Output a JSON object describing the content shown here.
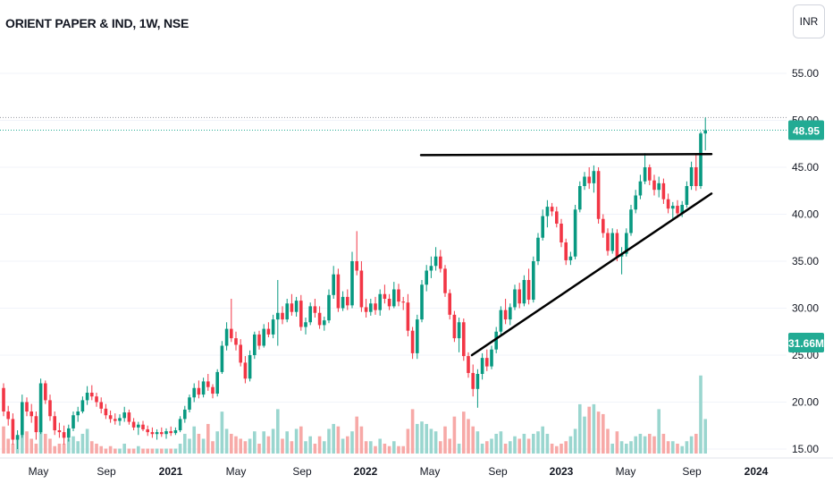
{
  "header": {
    "title": "ORIENT PAPER & IND, 1W, NSE"
  },
  "currency_button": {
    "label": "INR"
  },
  "colors": {
    "up": "#089981",
    "down": "#f23645",
    "volume_up": "#9ad6cf",
    "volume_down": "#f7a9a7",
    "last_price_line": "#22ab94",
    "trendline": "#000000",
    "axis_text": "#131722"
  },
  "chart_data": {
    "type": "candlestick",
    "ylim": [
      15,
      60
    ],
    "y_ticks": [
      "15.00",
      "20.00",
      "25.00",
      "30.00",
      "35.00",
      "40.00",
      "45.00",
      "50.00",
      "55.00"
    ],
    "x_ticks": [
      "May",
      "Sep",
      "2021",
      "May",
      "Sep",
      "2022",
      "May",
      "Sep",
      "2023",
      "May",
      "Sep",
      "2024"
    ],
    "last_price": "48.95",
    "volume_label": "31.66M",
    "high_line": 50.3,
    "resistance_line": {
      "start": 46.3,
      "end": 46.4
    },
    "support_line": {
      "start": 25.0,
      "end": 42.2
    },
    "volume_axis_max": 45,
    "candles": [
      [
        21.5,
        22.0,
        18.5,
        19.0
      ],
      [
        19.0,
        19.6,
        17.5,
        18.2
      ],
      [
        18.2,
        18.8,
        15.5,
        16.0
      ],
      [
        16.0,
        17.0,
        15.0,
        16.5
      ],
      [
        16.5,
        20.8,
        16.2,
        20.0
      ],
      [
        20.0,
        20.5,
        18.5,
        19.0
      ],
      [
        19.0,
        19.8,
        17.8,
        18.5
      ],
      [
        18.5,
        19.0,
        16.0,
        16.8
      ],
      [
        16.8,
        22.5,
        16.6,
        22.0
      ],
      [
        22.0,
        22.3,
        19.8,
        20.2
      ],
      [
        20.2,
        20.8,
        18.0,
        18.5
      ],
      [
        18.5,
        19.0,
        16.5,
        17.0
      ],
      [
        17.0,
        17.8,
        16.2,
        16.8
      ],
      [
        16.8,
        17.5,
        15.5,
        16.2
      ],
      [
        16.2,
        17.6,
        15.8,
        17.2
      ],
      [
        17.2,
        19.0,
        16.9,
        18.6
      ],
      [
        18.6,
        19.5,
        17.9,
        19.0
      ],
      [
        19.0,
        20.6,
        18.8,
        20.2
      ],
      [
        20.2,
        21.7,
        19.7,
        21.0
      ],
      [
        21.0,
        21.8,
        20.2,
        20.6
      ],
      [
        20.6,
        21.0,
        19.5,
        20.0
      ],
      [
        20.0,
        20.5,
        18.8,
        19.3
      ],
      [
        19.3,
        19.8,
        18.2,
        18.6
      ],
      [
        18.6,
        19.1,
        17.8,
        18.2
      ],
      [
        18.2,
        18.8,
        17.6,
        18.0
      ],
      [
        18.0,
        18.7,
        17.5,
        18.3
      ],
      [
        18.3,
        19.5,
        17.9,
        18.9
      ],
      [
        18.9,
        19.2,
        17.6,
        17.9
      ],
      [
        17.9,
        18.3,
        17.0,
        17.3
      ],
      [
        17.3,
        17.9,
        16.5,
        17.6
      ],
      [
        17.6,
        18.0,
        16.9,
        17.1
      ],
      [
        17.1,
        17.5,
        16.4,
        16.8
      ],
      [
        16.8,
        17.3,
        16.2,
        16.6
      ],
      [
        16.6,
        17.1,
        16.0,
        16.8
      ],
      [
        16.8,
        17.3,
        16.3,
        16.6
      ],
      [
        16.6,
        17.2,
        16.1,
        16.9
      ],
      [
        16.9,
        17.4,
        16.4,
        16.7
      ],
      [
        16.7,
        17.3,
        16.5,
        17.0
      ],
      [
        17.0,
        18.5,
        16.8,
        18.2
      ],
      [
        18.2,
        19.6,
        17.8,
        19.2
      ],
      [
        19.2,
        20.8,
        18.9,
        20.5
      ],
      [
        20.5,
        22.0,
        20.0,
        21.5
      ],
      [
        21.5,
        22.3,
        20.4,
        20.8
      ],
      [
        20.8,
        22.6,
        20.5,
        22.2
      ],
      [
        22.2,
        23.0,
        21.2,
        21.6
      ],
      [
        21.6,
        21.9,
        20.4,
        20.9
      ],
      [
        20.9,
        23.5,
        20.6,
        23.2
      ],
      [
        23.2,
        26.5,
        23.0,
        26.0
      ],
      [
        26.0,
        28.5,
        25.5,
        27.8
      ],
      [
        27.8,
        31.0,
        26.4,
        26.8
      ],
      [
        26.8,
        27.5,
        25.5,
        26.1
      ],
      [
        26.1,
        26.7,
        23.8,
        24.2
      ],
      [
        24.2,
        24.9,
        22.0,
        22.5
      ],
      [
        22.5,
        25.5,
        22.2,
        25.0
      ],
      [
        25.0,
        27.5,
        24.6,
        27.2
      ],
      [
        27.2,
        27.6,
        25.6,
        26.0
      ],
      [
        26.0,
        28.3,
        25.8,
        27.8
      ],
      [
        27.8,
        28.5,
        26.9,
        27.2
      ],
      [
        27.2,
        29.3,
        26.8,
        28.8
      ],
      [
        28.8,
        33.0,
        26.0,
        29.5
      ],
      [
        29.5,
        30.2,
        28.3,
        28.8
      ],
      [
        28.8,
        31.0,
        28.5,
        30.5
      ],
      [
        30.5,
        31.5,
        29.2,
        29.6
      ],
      [
        29.6,
        31.2,
        29.1,
        30.8
      ],
      [
        30.8,
        31.4,
        27.6,
        28.0
      ],
      [
        28.0,
        29.0,
        27.2,
        28.5
      ],
      [
        28.5,
        30.6,
        28.2,
        30.2
      ],
      [
        30.2,
        31.0,
        29.0,
        29.5
      ],
      [
        29.5,
        30.2,
        27.8,
        28.2
      ],
      [
        28.2,
        29.1,
        27.6,
        28.7
      ],
      [
        28.7,
        32.0,
        28.4,
        31.4
      ],
      [
        31.4,
        34.5,
        31.0,
        33.6
      ],
      [
        33.6,
        34.2,
        29.6,
        30.0
      ],
      [
        30.0,
        31.8,
        29.7,
        31.2
      ],
      [
        31.2,
        32.0,
        29.8,
        30.3
      ],
      [
        30.3,
        36.0,
        30.0,
        35.0
      ],
      [
        35.0,
        38.2,
        33.5,
        34.0
      ],
      [
        34.0,
        35.0,
        29.6,
        30.1
      ],
      [
        30.1,
        31.0,
        29.0,
        29.6
      ],
      [
        29.6,
        31.0,
        29.2,
        30.5
      ],
      [
        30.5,
        31.2,
        29.3,
        29.8
      ],
      [
        29.8,
        32.0,
        29.2,
        31.5
      ],
      [
        31.5,
        32.5,
        30.5,
        31.0
      ],
      [
        31.0,
        31.5,
        29.8,
        30.2
      ],
      [
        30.2,
        32.8,
        30.0,
        32.0
      ],
      [
        32.0,
        32.6,
        30.2,
        30.7
      ],
      [
        30.7,
        31.2,
        29.8,
        30.6
      ],
      [
        30.6,
        31.5,
        27.0,
        27.6
      ],
      [
        27.6,
        28.0,
        24.6,
        25.2
      ],
      [
        25.2,
        29.3,
        24.6,
        28.8
      ],
      [
        28.8,
        33.0,
        28.5,
        32.5
      ],
      [
        32.5,
        34.6,
        31.8,
        34.0
      ],
      [
        34.0,
        35.5,
        33.2,
        34.5
      ],
      [
        34.5,
        36.5,
        34.0,
        35.5
      ],
      [
        35.5,
        36.2,
        33.8,
        34.2
      ],
      [
        34.2,
        34.6,
        31.2,
        31.6
      ],
      [
        31.6,
        32.0,
        28.8,
        29.3
      ],
      [
        29.3,
        29.7,
        26.4,
        26.8
      ],
      [
        26.8,
        29.0,
        25.3,
        28.5
      ],
      [
        28.5,
        28.9,
        24.4,
        24.9
      ],
      [
        24.9,
        25.3,
        22.6,
        23.1
      ],
      [
        23.1,
        24.0,
        20.6,
        21.4
      ],
      [
        21.4,
        23.5,
        19.4,
        23.0
      ],
      [
        23.0,
        25.2,
        22.4,
        24.7
      ],
      [
        24.7,
        25.6,
        23.3,
        23.8
      ],
      [
        23.8,
        26.0,
        23.5,
        25.6
      ],
      [
        25.6,
        28.0,
        25.2,
        27.5
      ],
      [
        27.5,
        30.2,
        27.0,
        29.8
      ],
      [
        29.8,
        31.0,
        28.3,
        28.8
      ],
      [
        28.8,
        30.5,
        28.2,
        30.1
      ],
      [
        30.1,
        32.5,
        29.8,
        32.0
      ],
      [
        32.0,
        32.7,
        30.0,
        30.5
      ],
      [
        30.5,
        33.5,
        30.2,
        33.0
      ],
      [
        33.0,
        34.2,
        30.4,
        30.9
      ],
      [
        30.9,
        35.5,
        30.6,
        35.0
      ],
      [
        35.0,
        38.0,
        34.6,
        37.5
      ],
      [
        37.5,
        40.5,
        37.2,
        39.8
      ],
      [
        39.8,
        41.5,
        38.6,
        40.8
      ],
      [
        40.8,
        41.2,
        39.8,
        40.3
      ],
      [
        40.3,
        40.8,
        38.6,
        39.0
      ],
      [
        39.0,
        39.5,
        36.5,
        37.0
      ],
      [
        37.0,
        37.4,
        34.6,
        35.1
      ],
      [
        35.1,
        36.0,
        34.6,
        35.5
      ],
      [
        35.5,
        41.0,
        35.2,
        40.5
      ],
      [
        40.5,
        43.5,
        40.2,
        43.0
      ],
      [
        43.0,
        44.5,
        42.6,
        44.0
      ],
      [
        44.0,
        45.0,
        42.7,
        43.3
      ],
      [
        43.3,
        45.2,
        42.3,
        44.6
      ],
      [
        44.6,
        45.0,
        39.0,
        39.5
      ],
      [
        39.5,
        40.0,
        37.5,
        38.0
      ],
      [
        38.0,
        38.5,
        35.6,
        36.1
      ],
      [
        36.1,
        38.5,
        35.8,
        38.0
      ],
      [
        38.0,
        38.4,
        35.0,
        35.5
      ],
      [
        35.5,
        36.5,
        33.6,
        35.8
      ],
      [
        35.8,
        38.5,
        35.5,
        38.0
      ],
      [
        38.0,
        41.0,
        37.7,
        40.5
      ],
      [
        40.5,
        42.6,
        40.1,
        42.0
      ],
      [
        42.0,
        44.2,
        41.6,
        43.5
      ],
      [
        43.5,
        46.5,
        43.2,
        45.0
      ],
      [
        45.0,
        45.3,
        43.1,
        43.6
      ],
      [
        43.6,
        44.2,
        42.0,
        42.6
      ],
      [
        42.6,
        44.0,
        41.8,
        43.3
      ],
      [
        43.3,
        43.8,
        41.1,
        41.6
      ],
      [
        41.6,
        42.2,
        40.1,
        40.6
      ],
      [
        40.6,
        41.3,
        39.5,
        40.9
      ],
      [
        40.9,
        41.5,
        39.6,
        40.1
      ],
      [
        40.1,
        41.4,
        39.7,
        41.0
      ],
      [
        41.0,
        43.5,
        40.7,
        43.0
      ],
      [
        43.0,
        45.6,
        42.6,
        45.0
      ],
      [
        45.0,
        46.4,
        42.5,
        43.0
      ],
      [
        43.0,
        48.8,
        42.7,
        48.6
      ],
      [
        48.6,
        50.3,
        46.8,
        48.95
      ]
    ],
    "volumes": [
      11,
      6,
      4,
      7,
      15,
      9,
      6,
      4,
      16,
      8,
      6,
      3,
      4,
      4,
      6,
      7,
      5,
      8,
      10,
      5,
      4,
      3,
      2,
      3,
      2,
      2,
      4,
      2,
      2,
      3,
      2,
      2,
      2,
      2,
      2,
      2,
      2,
      2,
      4,
      8,
      6,
      11,
      8,
      6,
      12,
      5,
      9,
      17,
      10,
      8,
      7,
      6,
      5,
      6,
      9,
      4,
      9,
      7,
      10,
      18,
      6,
      9,
      5,
      10,
      11,
      5,
      7,
      4,
      7,
      5,
      10,
      12,
      11,
      6,
      7,
      9,
      15,
      11,
      5,
      5,
      3,
      6,
      4,
      3,
      5,
      3,
      3,
      10,
      18,
      12,
      13,
      12,
      10,
      9,
      5,
      11,
      6,
      15,
      4,
      17,
      14,
      11,
      9,
      4,
      5,
      6,
      8,
      9,
      4,
      5,
      7,
      6,
      8,
      6,
      8,
      9,
      11,
      8,
      4,
      3,
      4,
      5,
      7,
      10,
      20,
      15,
      19,
      20,
      17,
      16,
      10,
      4,
      9,
      5,
      4,
      5,
      7,
      8,
      7,
      8,
      7,
      18,
      8,
      5,
      5,
      4,
      3,
      5,
      7,
      8,
      31.66,
      14
    ]
  }
}
